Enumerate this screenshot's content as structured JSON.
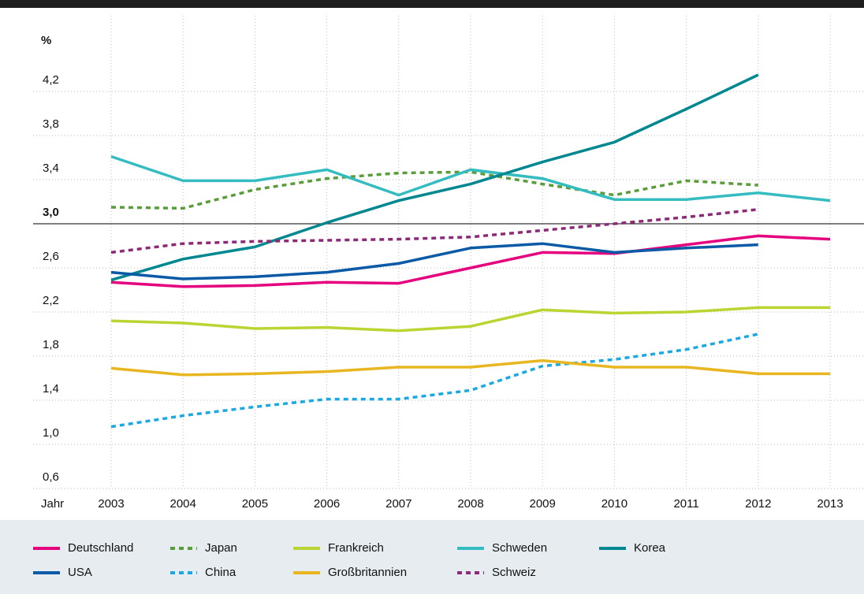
{
  "chart_data": {
    "type": "line",
    "x_label": "Jahr",
    "y_label": "%",
    "categories": [
      "2003",
      "2004",
      "2005",
      "2006",
      "2007",
      "2008",
      "2009",
      "2010",
      "2011",
      "2012",
      "2013"
    ],
    "ylim": [
      0.6,
      4.6
    ],
    "yticks": [
      {
        "value": 0.6,
        "label": "0,6"
      },
      {
        "value": 1.0,
        "label": "1,0"
      },
      {
        "value": 1.4,
        "label": "1,4"
      },
      {
        "value": 1.8,
        "label": "1,8"
      },
      {
        "value": 2.2,
        "label": "2,2"
      },
      {
        "value": 2.6,
        "label": "2,6"
      },
      {
        "value": 3.0,
        "label": "3,0",
        "emphasis": true
      },
      {
        "value": 3.4,
        "label": "3,4"
      },
      {
        "value": 3.8,
        "label": "3,8"
      },
      {
        "value": 4.2,
        "label": "4,2"
      }
    ],
    "grid": true,
    "series": [
      {
        "name": "Deutschland",
        "color": "#e5007d",
        "dashed": false,
        "values": [
          2.47,
          2.43,
          2.44,
          2.47,
          2.46,
          2.6,
          2.74,
          2.73,
          2.81,
          2.89,
          2.86
        ]
      },
      {
        "name": "Japan",
        "color": "#5a9e3c",
        "dashed": true,
        "values": [
          3.15,
          3.14,
          3.31,
          3.41,
          3.46,
          3.47,
          3.36,
          3.26,
          3.39,
          3.35,
          null
        ]
      },
      {
        "name": "Frankreich",
        "color": "#b9d532",
        "dashed": false,
        "values": [
          2.12,
          2.1,
          2.05,
          2.06,
          2.03,
          2.07,
          2.22,
          2.19,
          2.2,
          2.24,
          2.24
        ]
      },
      {
        "name": "Schweden",
        "color": "#35bcc0",
        "dashed": false,
        "values": [
          3.61,
          3.39,
          3.39,
          3.49,
          3.26,
          3.49,
          3.41,
          3.22,
          3.22,
          3.28,
          3.21
        ]
      },
      {
        "name": "Korea",
        "color": "#00878f",
        "dashed": false,
        "values": [
          2.49,
          2.68,
          2.79,
          3.01,
          3.21,
          3.36,
          3.56,
          3.74,
          4.04,
          4.35,
          null
        ]
      },
      {
        "name": "USA",
        "color": "#0a5aa5",
        "dashed": false,
        "values": [
          2.56,
          2.5,
          2.52,
          2.56,
          2.64,
          2.78,
          2.82,
          2.74,
          2.78,
          2.81,
          null
        ]
      },
      {
        "name": "China",
        "color": "#1ba9e1",
        "dashed": true,
        "values": [
          1.16,
          1.26,
          1.34,
          1.41,
          1.41,
          1.49,
          1.71,
          1.77,
          1.86,
          2.0,
          null
        ]
      },
      {
        "name": "Großbritannien",
        "color": "#e8b620",
        "dashed": false,
        "values": [
          1.69,
          1.63,
          1.64,
          1.66,
          1.7,
          1.7,
          1.76,
          1.7,
          1.7,
          1.64,
          1.64
        ]
      },
      {
        "name": "Schweiz",
        "color": "#8d2a78",
        "dashed": true,
        "values": [
          2.74,
          2.82,
          2.84,
          2.85,
          2.86,
          2.88,
          2.94,
          3.0,
          3.06,
          3.13,
          null
        ]
      }
    ]
  }
}
